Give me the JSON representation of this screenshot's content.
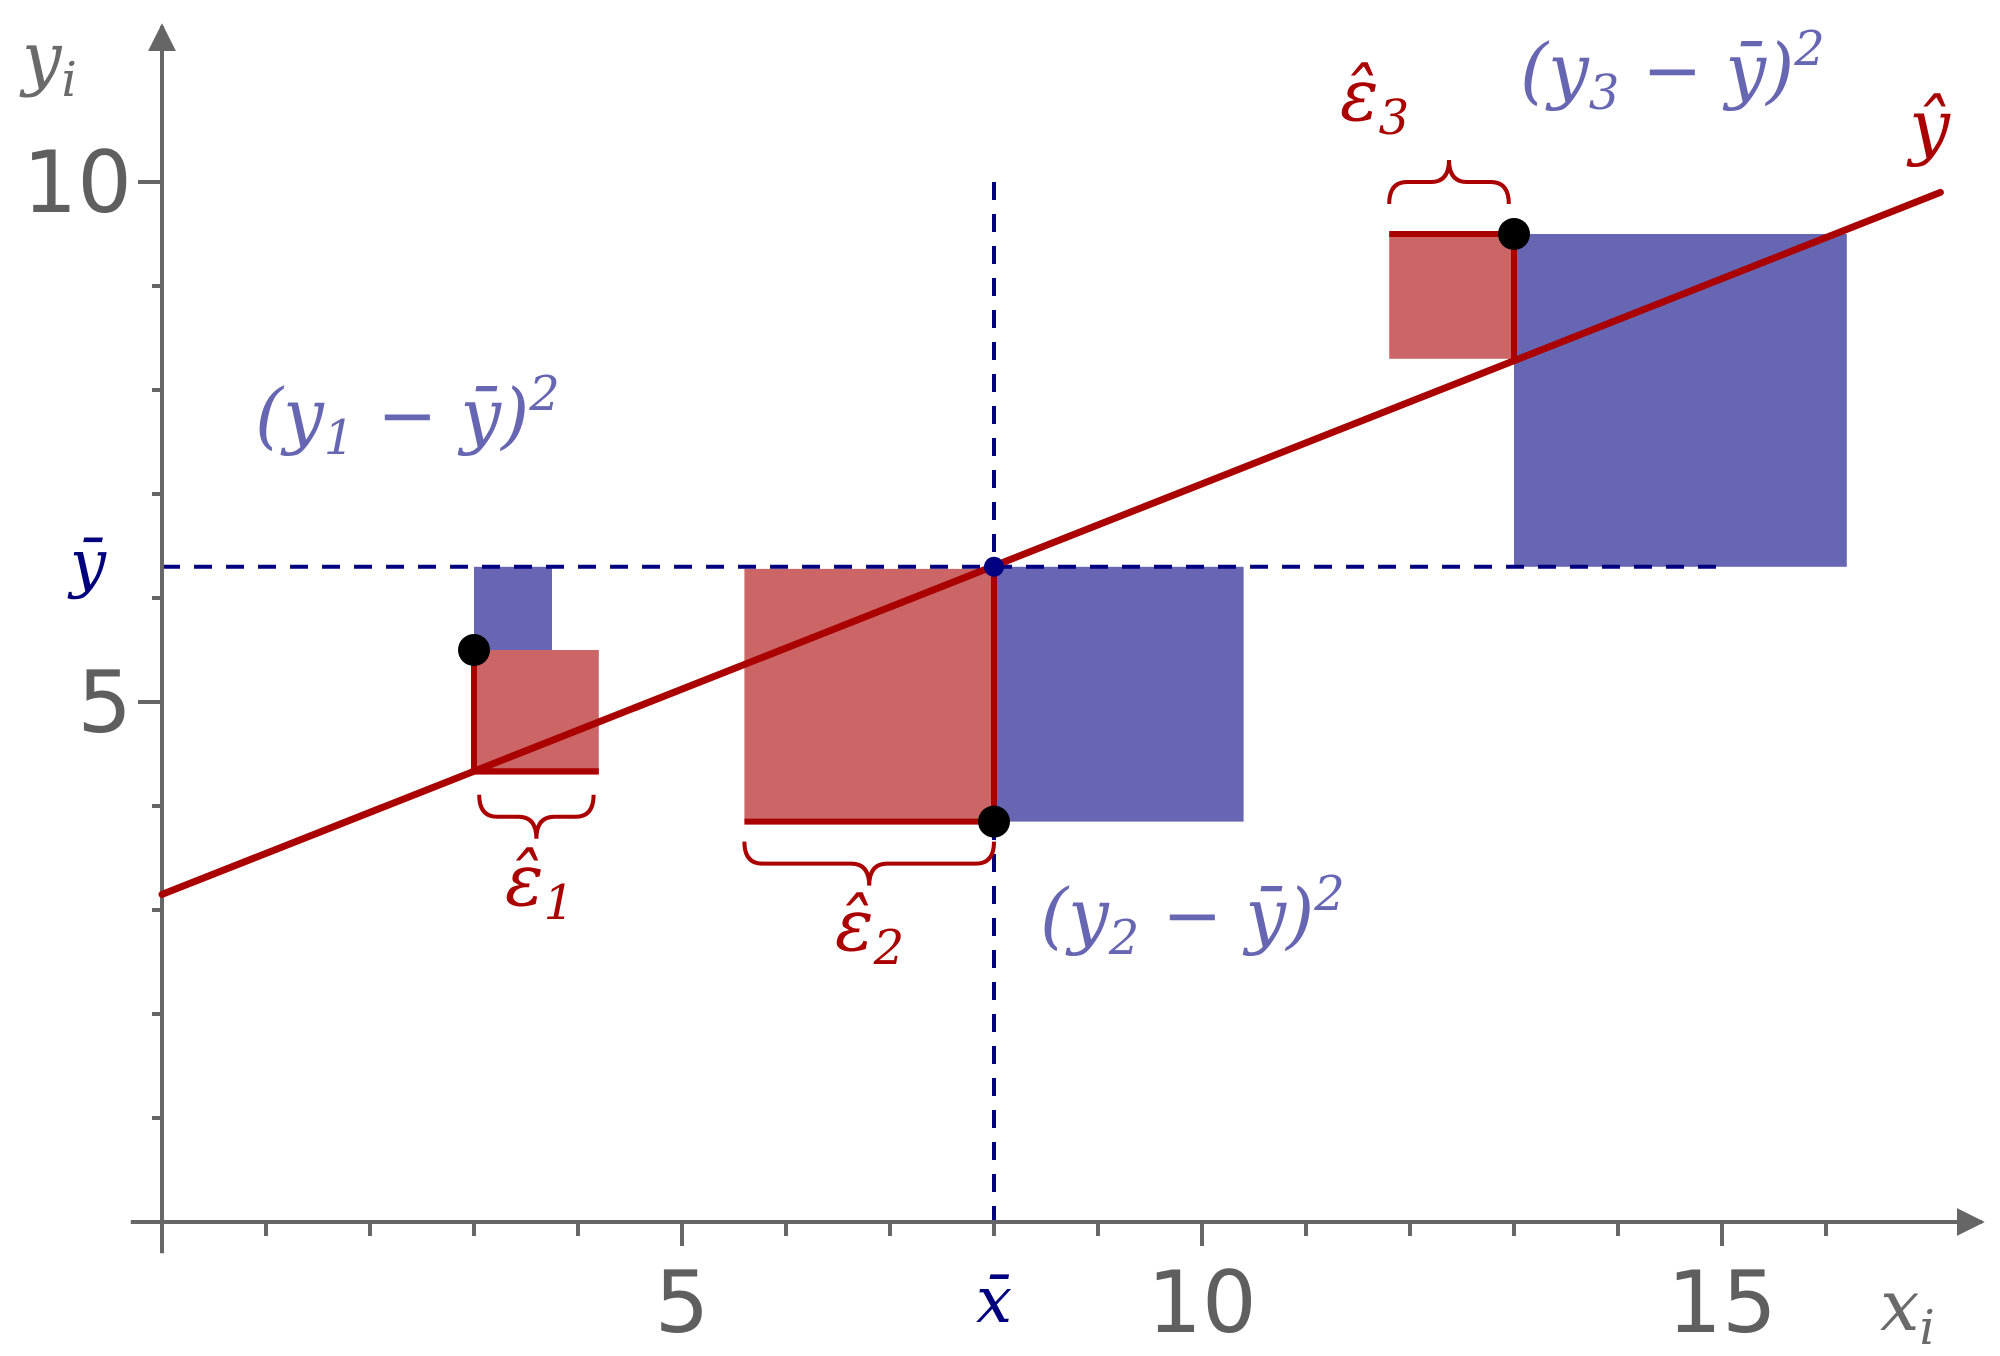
{
  "colors": {
    "axis": "#666666",
    "regression_line": "#aa0000",
    "residual_square": "#cc6666",
    "deviation_square": "#6666b3",
    "mean_lines": "#000080",
    "points": "#000000"
  },
  "axes": {
    "x_name": "x",
    "x_sub": "i",
    "y_name": "y",
    "y_sub": "i"
  },
  "chart_data": {
    "type": "scatter",
    "xlim": [
      0,
      17.5
    ],
    "ylim": [
      0,
      11.5
    ],
    "x_ticks": [
      5,
      10,
      15
    ],
    "x_tick_labels": [
      "5",
      "10",
      "15"
    ],
    "y_ticks": [
      5,
      10
    ],
    "y_tick_labels": [
      "5",
      "10"
    ],
    "points": [
      {
        "x": 3,
        "y": 5.5
      },
      {
        "x": 8,
        "y": 3.85
      },
      {
        "x": 13,
        "y": 9.5
      }
    ],
    "regression_line": {
      "x": [
        0,
        17.1
      ],
      "y": [
        3.15,
        9.9
      ]
    },
    "mean_x": 8,
    "mean_y": 6.3,
    "mean_x_label": "x̄",
    "mean_y_label": "ȳ",
    "fit_label": "ŷ",
    "deviation_squares": [
      {
        "x": [
          3,
          3.75
        ],
        "y": [
          5.5,
          6.3
        ],
        "label_sub": "1"
      },
      {
        "x": [
          8,
          10.4
        ],
        "y": [
          3.85,
          6.3
        ],
        "label_sub": "2"
      },
      {
        "x": [
          13,
          16.2
        ],
        "y": [
          6.3,
          9.5
        ],
        "label_sub": "3"
      }
    ],
    "residual_squares": [
      {
        "x": [
          3,
          4.2
        ],
        "y": [
          4.3,
          5.5
        ],
        "label_sub": "1"
      },
      {
        "x": [
          5.6,
          8
        ],
        "y": [
          3.85,
          6.28
        ],
        "label_sub": "2"
      },
      {
        "x": [
          11.8,
          13
        ],
        "y": [
          8.3,
          9.5
        ],
        "label_sub": "3"
      }
    ],
    "deviation_label": {
      "open": "(y",
      "middle": " − ȳ)",
      "power": "2"
    },
    "residual_label": {
      "symbol": "ε̂"
    }
  }
}
